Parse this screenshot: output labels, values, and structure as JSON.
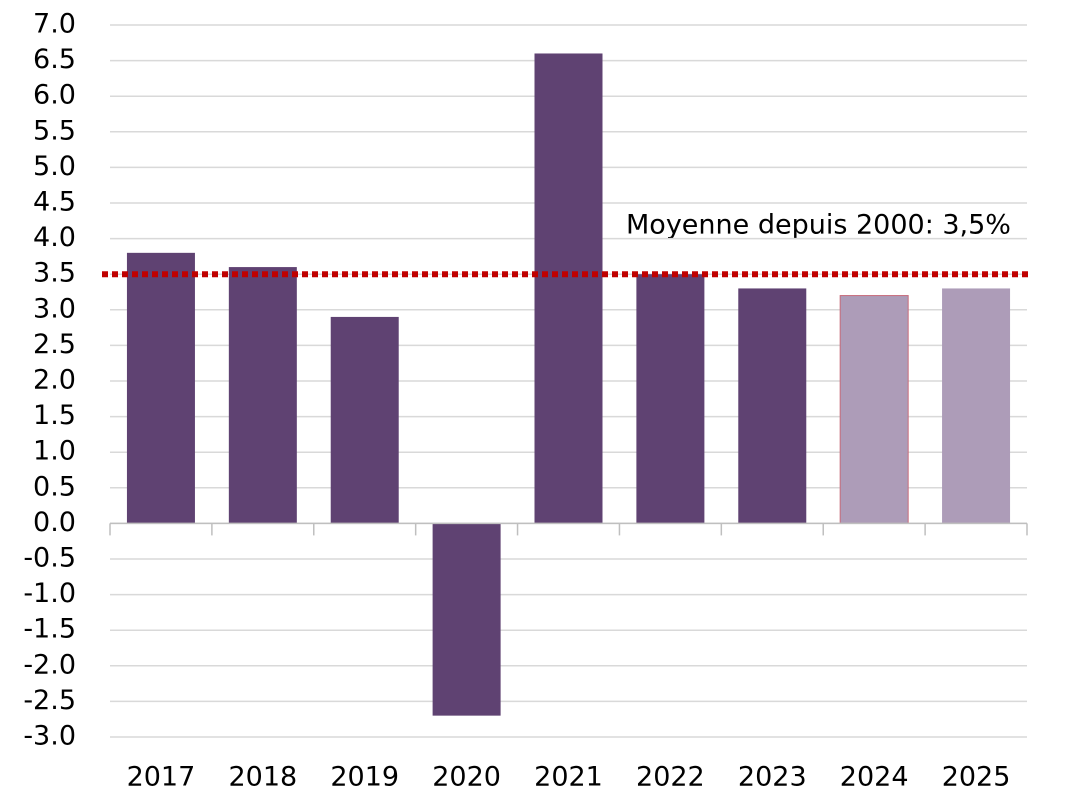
{
  "chart_data": {
    "type": "bar",
    "categories": [
      "2017",
      "2018",
      "2019",
      "2020",
      "2021",
      "2022",
      "2023",
      "2024",
      "2025"
    ],
    "values": [
      3.8,
      3.6,
      2.9,
      -2.7,
      6.6,
      3.5,
      3.3,
      3.2,
      3.3
    ],
    "colors": [
      "#5f4272",
      "#5f4272",
      "#5f4272",
      "#5f4272",
      "#5f4272",
      "#5f4272",
      "#5f4272",
      "#ad9cb8",
      "#ad9cb8"
    ],
    "ylim": [
      -3,
      7
    ],
    "yticks": [
      {
        "value": -3,
        "label": "-3.0"
      },
      -2.5,
      {
        "value": -2,
        "label": "-2.0"
      },
      -1.5,
      {
        "value": -1,
        "label": "-1.0"
      },
      -0.5,
      {
        "value": 0,
        "label": "0.0"
      },
      0.5,
      {
        "value": 1,
        "label": "1.0"
      },
      1.5,
      {
        "value": 2,
        "label": "2.0"
      },
      2.5,
      {
        "value": 3,
        "label": "3.0"
      },
      3.5,
      {
        "value": 4,
        "label": "4.0"
      },
      4.5,
      {
        "value": 5,
        "label": "5.0"
      },
      5.5,
      {
        "value": 6,
        "label": "6.0"
      },
      6.5,
      {
        "value": 7,
        "label": "7.0"
      }
    ],
    "grid": true,
    "average": {
      "value": 3.5,
      "label": "Moyenne depuis 2000: 3,5%",
      "color": "#c00000"
    }
  }
}
